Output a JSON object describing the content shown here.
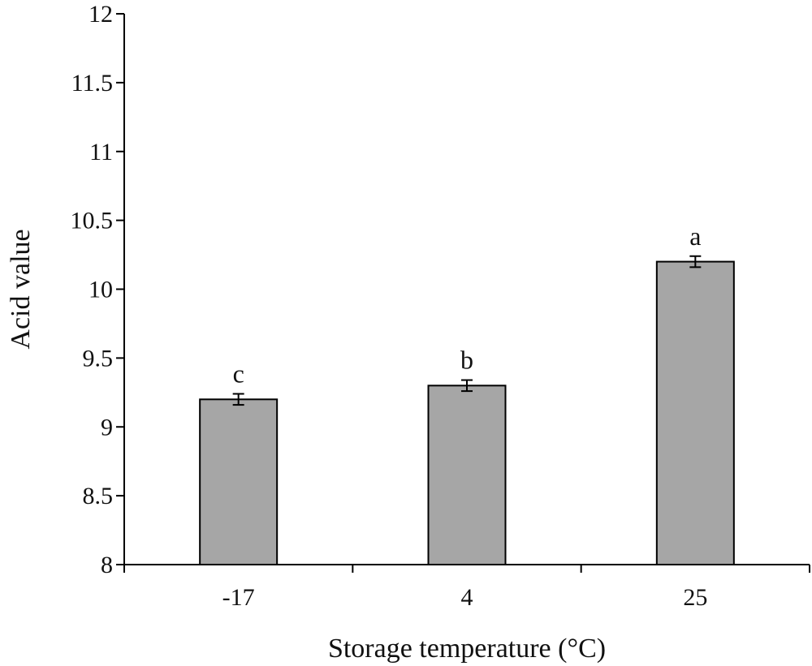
{
  "chart_data": {
    "type": "bar",
    "categories": [
      "-17",
      "4",
      "25"
    ],
    "values": [
      9.2,
      9.3,
      10.2
    ],
    "errors": [
      0.04,
      0.04,
      0.04
    ],
    "significance": [
      "c",
      "b",
      "a"
    ],
    "xlabel": "Storage temperature (°C)",
    "ylabel": "Acid value",
    "ylim": [
      8,
      12
    ],
    "yticks": [
      "8",
      "8.5",
      "9",
      "9.5",
      "10",
      "10.5",
      "11",
      "11.5",
      "12"
    ],
    "grid": false,
    "legend": "none",
    "bar_color": "#a6a6a6",
    "edge_color": "#000000"
  }
}
